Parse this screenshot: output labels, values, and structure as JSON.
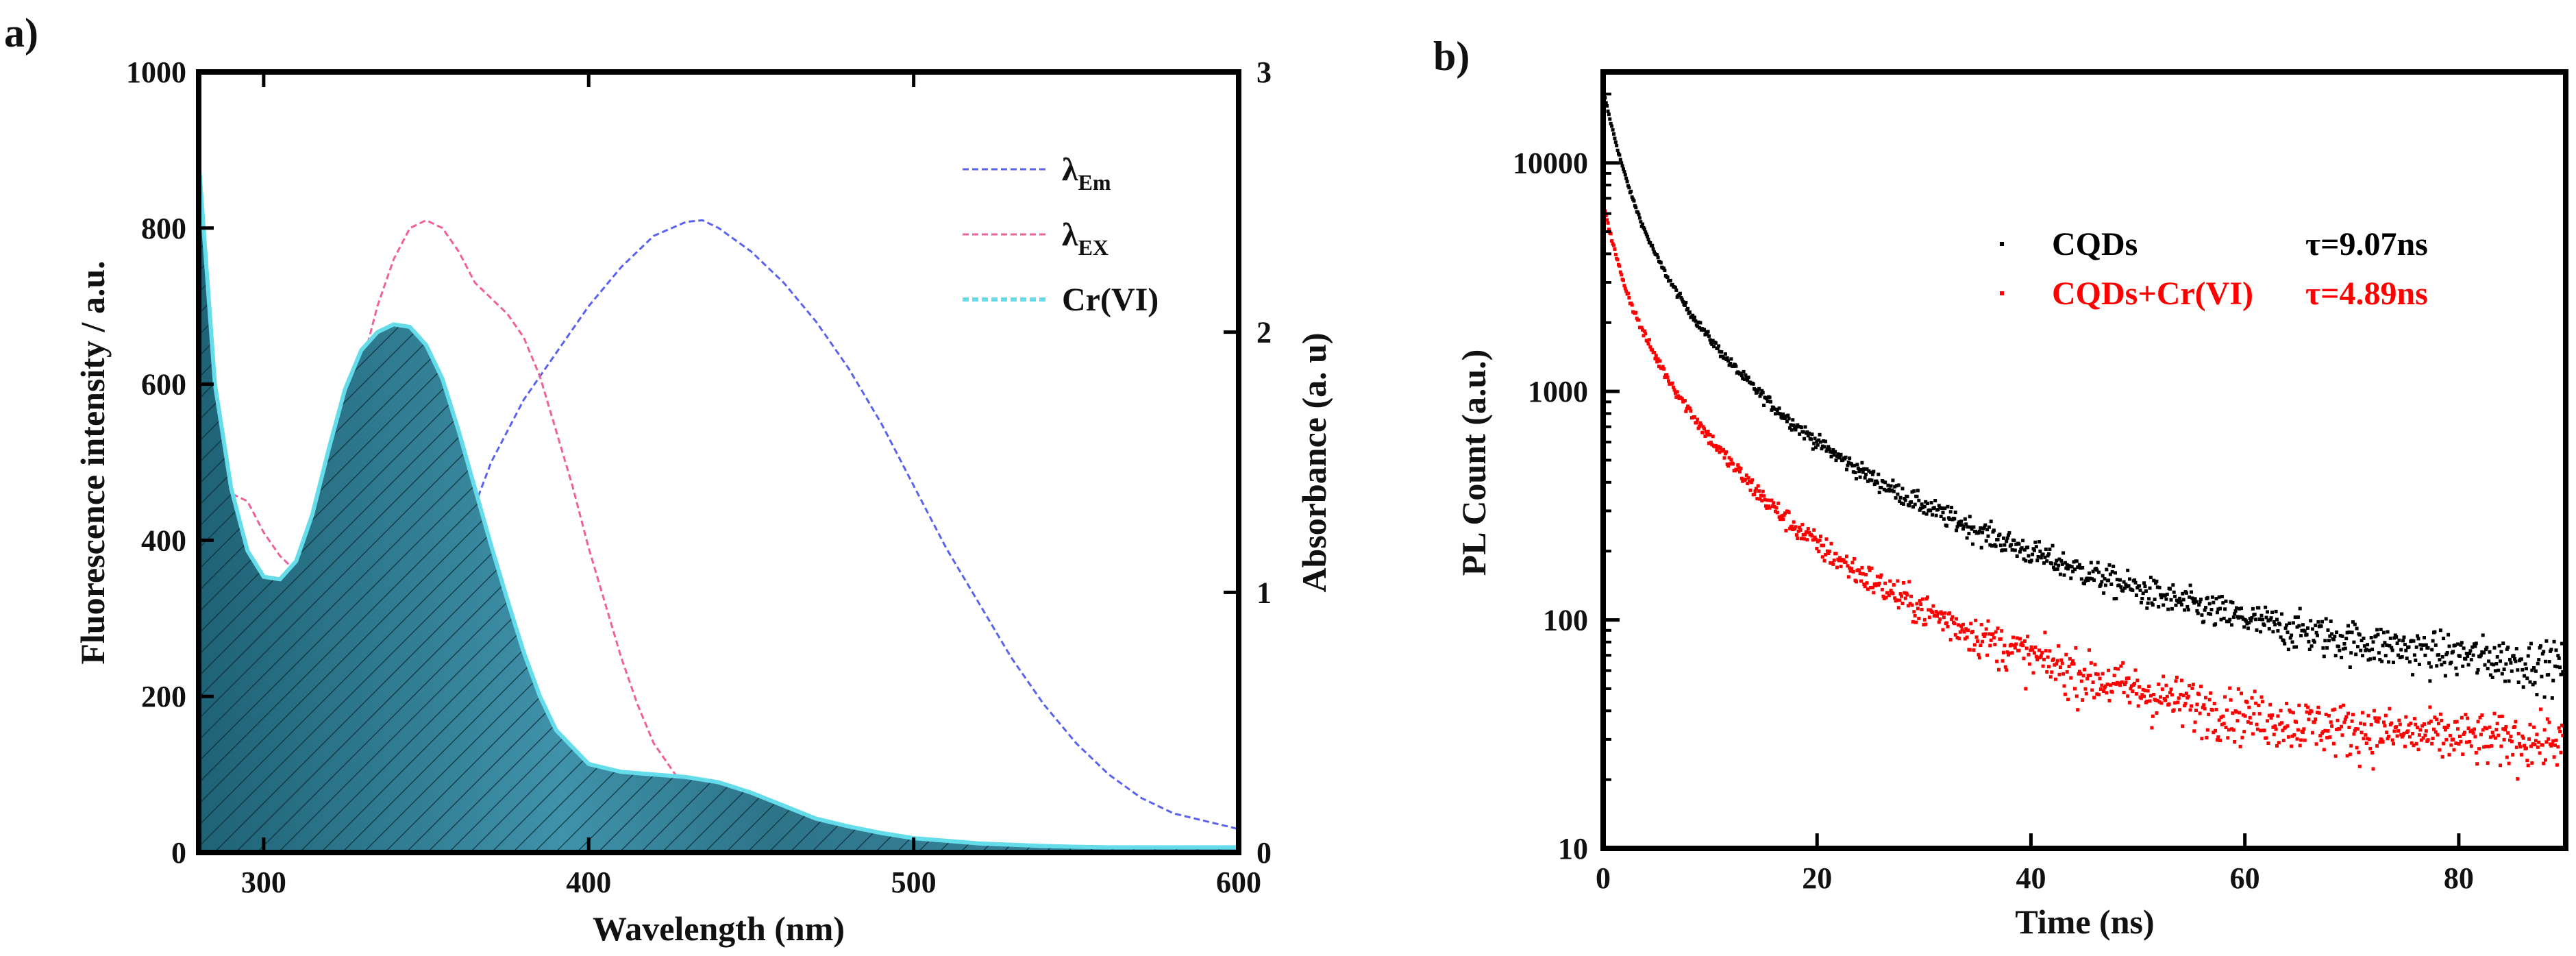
{
  "chart_data": [
    {
      "panel_label": "a)",
      "type": "line",
      "xlabel": "Wavelength  (nm)",
      "ylabel_left": "Fluorescence intensity / a.u.",
      "ylabel_right": "Absorbance (a. u)",
      "xlim": [
        280,
        600
      ],
      "ylim_left": [
        0,
        1000
      ],
      "ylim_right": [
        0,
        3
      ],
      "x_ticks": [
        300,
        400,
        500,
        600
      ],
      "y_ticks_left": [
        0,
        200,
        400,
        600,
        800,
        1000
      ],
      "y_ticks_right": [
        0,
        1,
        2,
        3
      ],
      "legend": {
        "position": "top-right",
        "entries": [
          {
            "symbol": "λ",
            "sub": "Em",
            "color": "#5a63f0"
          },
          {
            "symbol": "λ",
            "sub": "EX",
            "color": "#f0609a"
          },
          {
            "label": "Cr(VI)",
            "color": "#64dcea"
          }
        ]
      },
      "series": [
        {
          "name": "λEm",
          "axis": "left",
          "style": "dashed",
          "color": "#5a63f0",
          "x": [
            330,
            340,
            350,
            360,
            370,
            380,
            390,
            400,
            410,
            420,
            430,
            435,
            440,
            450,
            460,
            470,
            480,
            490,
            500,
            510,
            520,
            530,
            540,
            550,
            560,
            570,
            580,
            590,
            600
          ],
          "y": [
            80,
            160,
            260,
            390,
            500,
            580,
            640,
            700,
            750,
            790,
            808,
            810,
            800,
            770,
            730,
            680,
            620,
            550,
            470,
            390,
            320,
            250,
            190,
            140,
            100,
            70,
            50,
            40,
            30
          ]
        },
        {
          "name": "λEX",
          "axis": "left",
          "style": "dashed",
          "color": "#f0609a",
          "x": [
            280,
            285,
            290,
            295,
            300,
            305,
            310,
            315,
            320,
            325,
            330,
            335,
            340,
            345,
            350,
            355,
            360,
            365,
            370,
            375,
            380,
            385,
            390,
            395,
            400,
            405,
            410,
            415,
            420,
            425,
            430,
            435
          ],
          "y": [
            270,
            400,
            460,
            450,
            410,
            380,
            360,
            380,
            440,
            520,
            620,
            700,
            760,
            800,
            810,
            800,
            770,
            730,
            710,
            690,
            660,
            610,
            540,
            470,
            390,
            320,
            250,
            190,
            140,
            110,
            80,
            60
          ]
        },
        {
          "name": "Cr(VI)",
          "axis": "right",
          "style": "filled-hatched",
          "color": "#64dcea",
          "x": [
            280,
            285,
            290,
            295,
            300,
            305,
            310,
            315,
            320,
            325,
            330,
            335,
            340,
            345,
            350,
            355,
            360,
            365,
            370,
            375,
            380,
            385,
            390,
            400,
            410,
            420,
            430,
            440,
            450,
            460,
            470,
            480,
            490,
            500,
            510,
            520,
            530,
            540,
            550,
            560,
            570,
            580,
            590,
            600
          ],
          "y": [
            2.66,
            1.8,
            1.4,
            1.16,
            1.06,
            1.05,
            1.12,
            1.3,
            1.55,
            1.78,
            1.93,
            2.0,
            2.03,
            2.02,
            1.95,
            1.82,
            1.62,
            1.4,
            1.18,
            0.97,
            0.77,
            0.6,
            0.47,
            0.34,
            0.31,
            0.3,
            0.29,
            0.27,
            0.23,
            0.18,
            0.13,
            0.1,
            0.075,
            0.055,
            0.045,
            0.035,
            0.03,
            0.025,
            0.022,
            0.02,
            0.02,
            0.02,
            0.02,
            0.02
          ]
        }
      ]
    },
    {
      "panel_label": "b)",
      "type": "scatter",
      "xlabel": "Time (ns)",
      "ylabel": "PL Count (a.u.)",
      "xlim": [
        0,
        90
      ],
      "ylim": [
        10,
        25000
      ],
      "y_scale": "log",
      "x_ticks": [
        0,
        20,
        40,
        60,
        80
      ],
      "y_ticks": [
        10,
        100,
        1000,
        10000
      ],
      "legend": {
        "position": "top-right",
        "entries": [
          {
            "label": "CQDs",
            "tau": "τ=9.07ns",
            "color": "#000000"
          },
          {
            "label": "CQDs+Cr(VI)",
            "tau": "τ=4.89ns",
            "color": "#ff0000"
          }
        ]
      },
      "series": [
        {
          "name": "CQDs",
          "color": "#000000",
          "tau_ns": 9.07,
          "model": {
            "amplitudes": [
              13000,
              6500,
              1300
            ],
            "lifetimes_ns": [
              1.5,
              5,
              18
            ],
            "offset": 55
          }
        },
        {
          "name": "CQDs+Cr(VI)",
          "color": "#ff0000",
          "tau_ns": 4.89,
          "model": {
            "amplitudes": [
              3500,
              2700,
              590
            ],
            "lifetimes_ns": [
              1.2,
              4.5,
              15
            ],
            "offset": 28
          }
        }
      ]
    }
  ]
}
